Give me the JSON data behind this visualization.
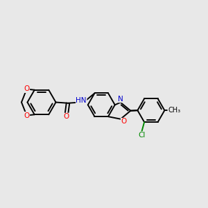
{
  "background_color": "#e8e8e8",
  "bond_color": "#000000",
  "atom_colors": {
    "O": "#ff0000",
    "N": "#0000cc",
    "Cl": "#008800",
    "C": "#000000"
  },
  "figsize": [
    3.0,
    3.0
  ],
  "dpi": 100,
  "xlim": [
    0,
    12
  ],
  "ylim": [
    0,
    12
  ]
}
